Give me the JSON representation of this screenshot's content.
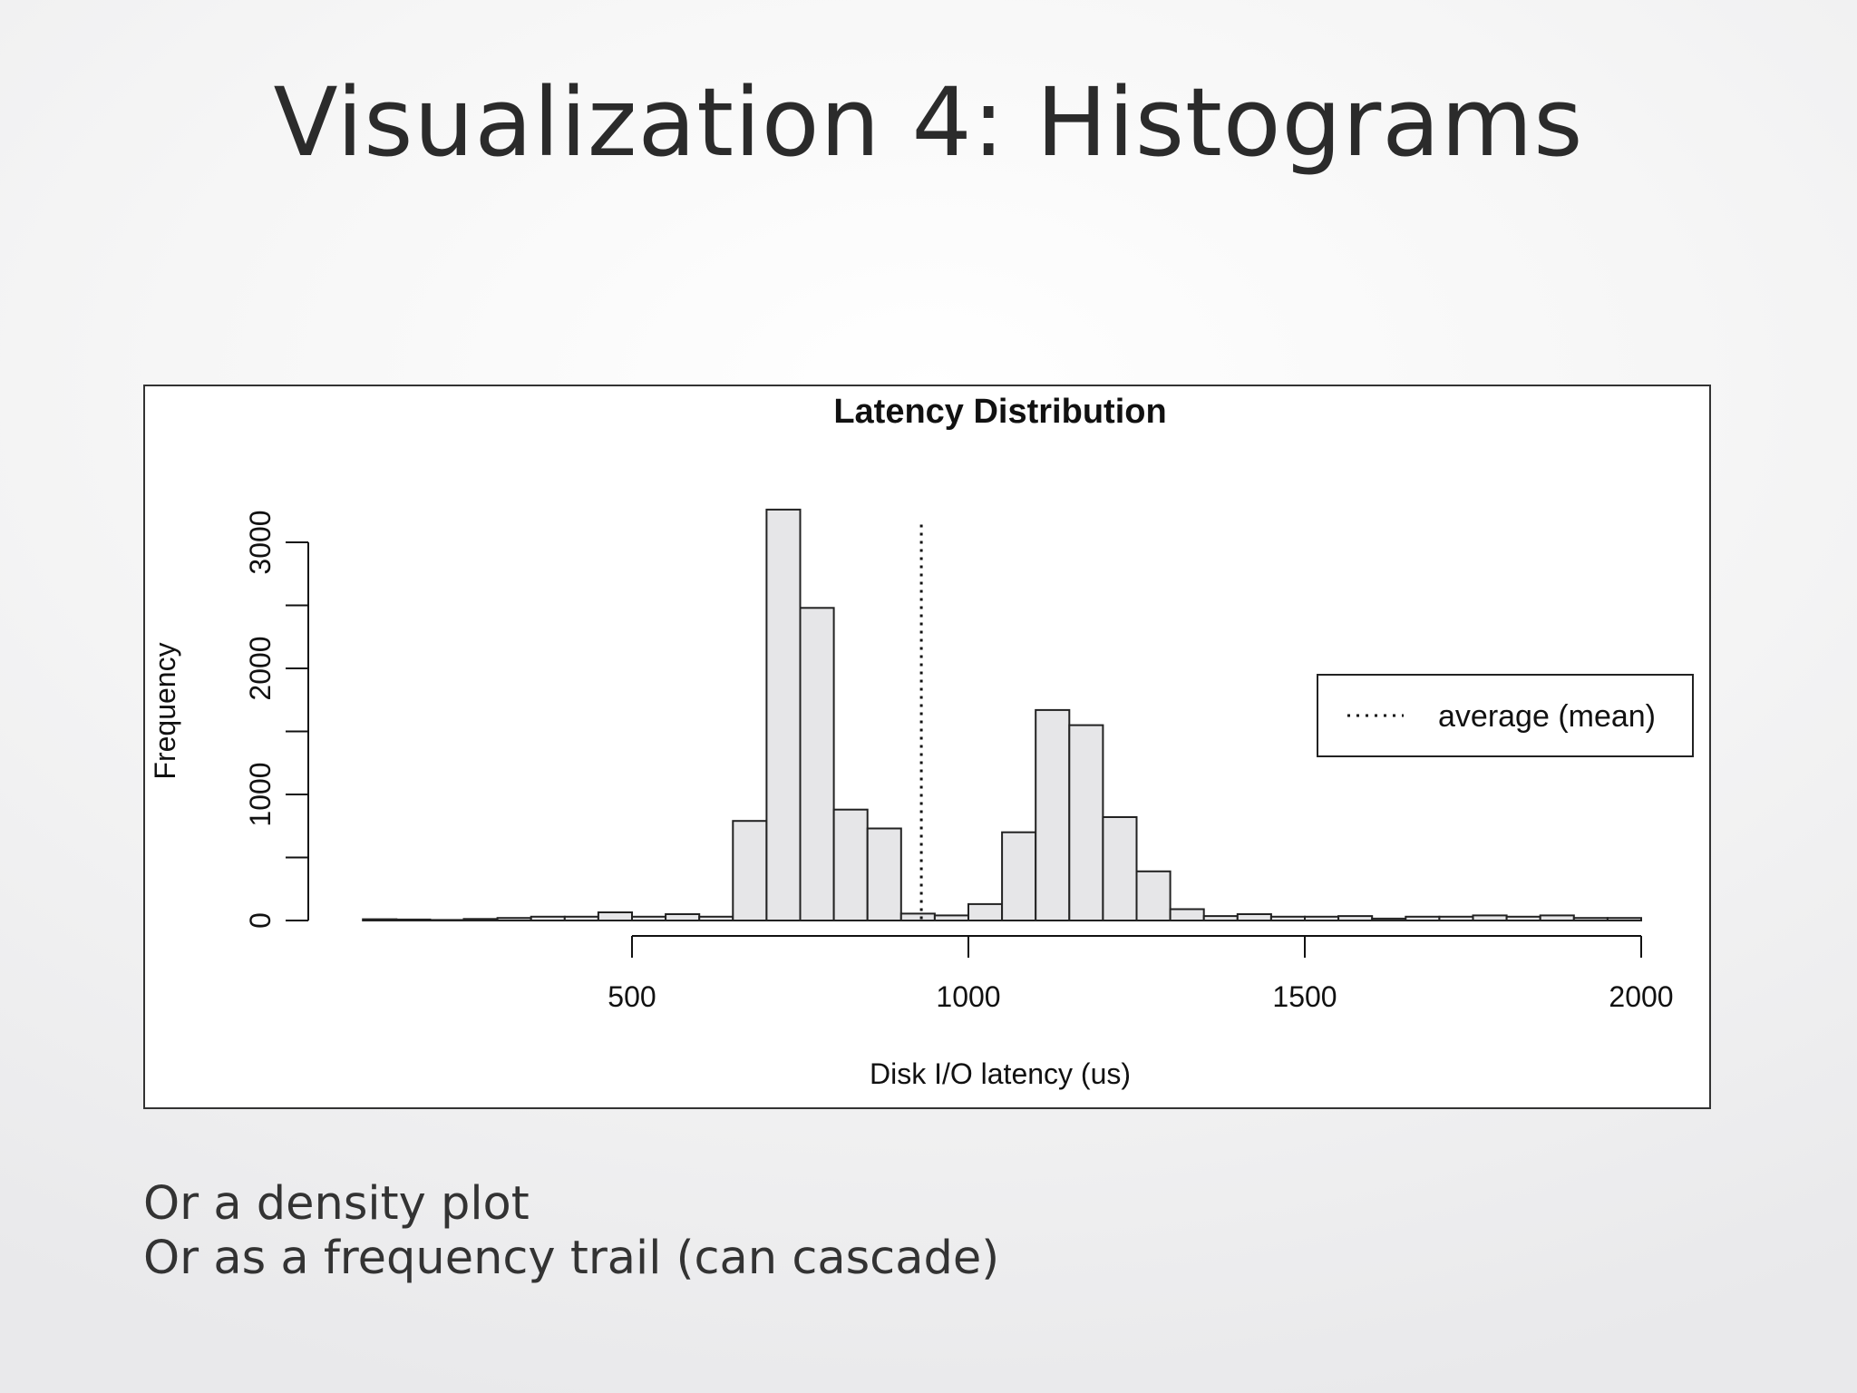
{
  "slide": {
    "title": "Visualization 4: Histograms",
    "bullets": [
      "Or a density plot",
      "Or as a frequency trail (can cascade)"
    ]
  },
  "colors": {
    "bar_fill": "#e6e6e8",
    "bar_stroke": "#222222",
    "text": "#333333",
    "axis": "#111111"
  },
  "chart_data": {
    "type": "bar",
    "title": "Latency Distribution",
    "xlabel": "Disk I/O latency (us)",
    "ylabel": "Frequency",
    "bin_width": 50,
    "bin_starts": [
      100,
      150,
      200,
      250,
      300,
      350,
      400,
      450,
      500,
      550,
      600,
      650,
      700,
      750,
      800,
      850,
      900,
      950,
      1000,
      1050,
      1100,
      1150,
      1200,
      1250,
      1300,
      1350,
      1400,
      1450,
      1500,
      1550,
      1600,
      1650,
      1700,
      1750,
      1800,
      1850,
      1900,
      1950
    ],
    "values": [
      10,
      8,
      4,
      12,
      20,
      30,
      30,
      65,
      30,
      50,
      30,
      790,
      3260,
      2480,
      880,
      730,
      55,
      40,
      130,
      700,
      1670,
      1550,
      820,
      390,
      90,
      35,
      50,
      30,
      30,
      35,
      15,
      30,
      30,
      40,
      30,
      40,
      20,
      20
    ],
    "x_ticks": [
      500,
      1000,
      1500,
      2000
    ],
    "x_tick_labels": [
      "500",
      "1000",
      "1500",
      "2000"
    ],
    "y_ticks": [
      0,
      500,
      1000,
      1500,
      2000,
      2500,
      3000
    ],
    "y_tick_labels": [
      "0",
      "",
      "1000",
      "",
      "2000",
      "",
      "3000"
    ],
    "xlim": [
      500,
      2000
    ],
    "ylim": [
      0,
      3000
    ],
    "mean_line": 930,
    "grid": false,
    "legend": {
      "position": "right",
      "entries": [
        {
          "label": "average (mean)",
          "style": "dotted"
        }
      ]
    }
  }
}
